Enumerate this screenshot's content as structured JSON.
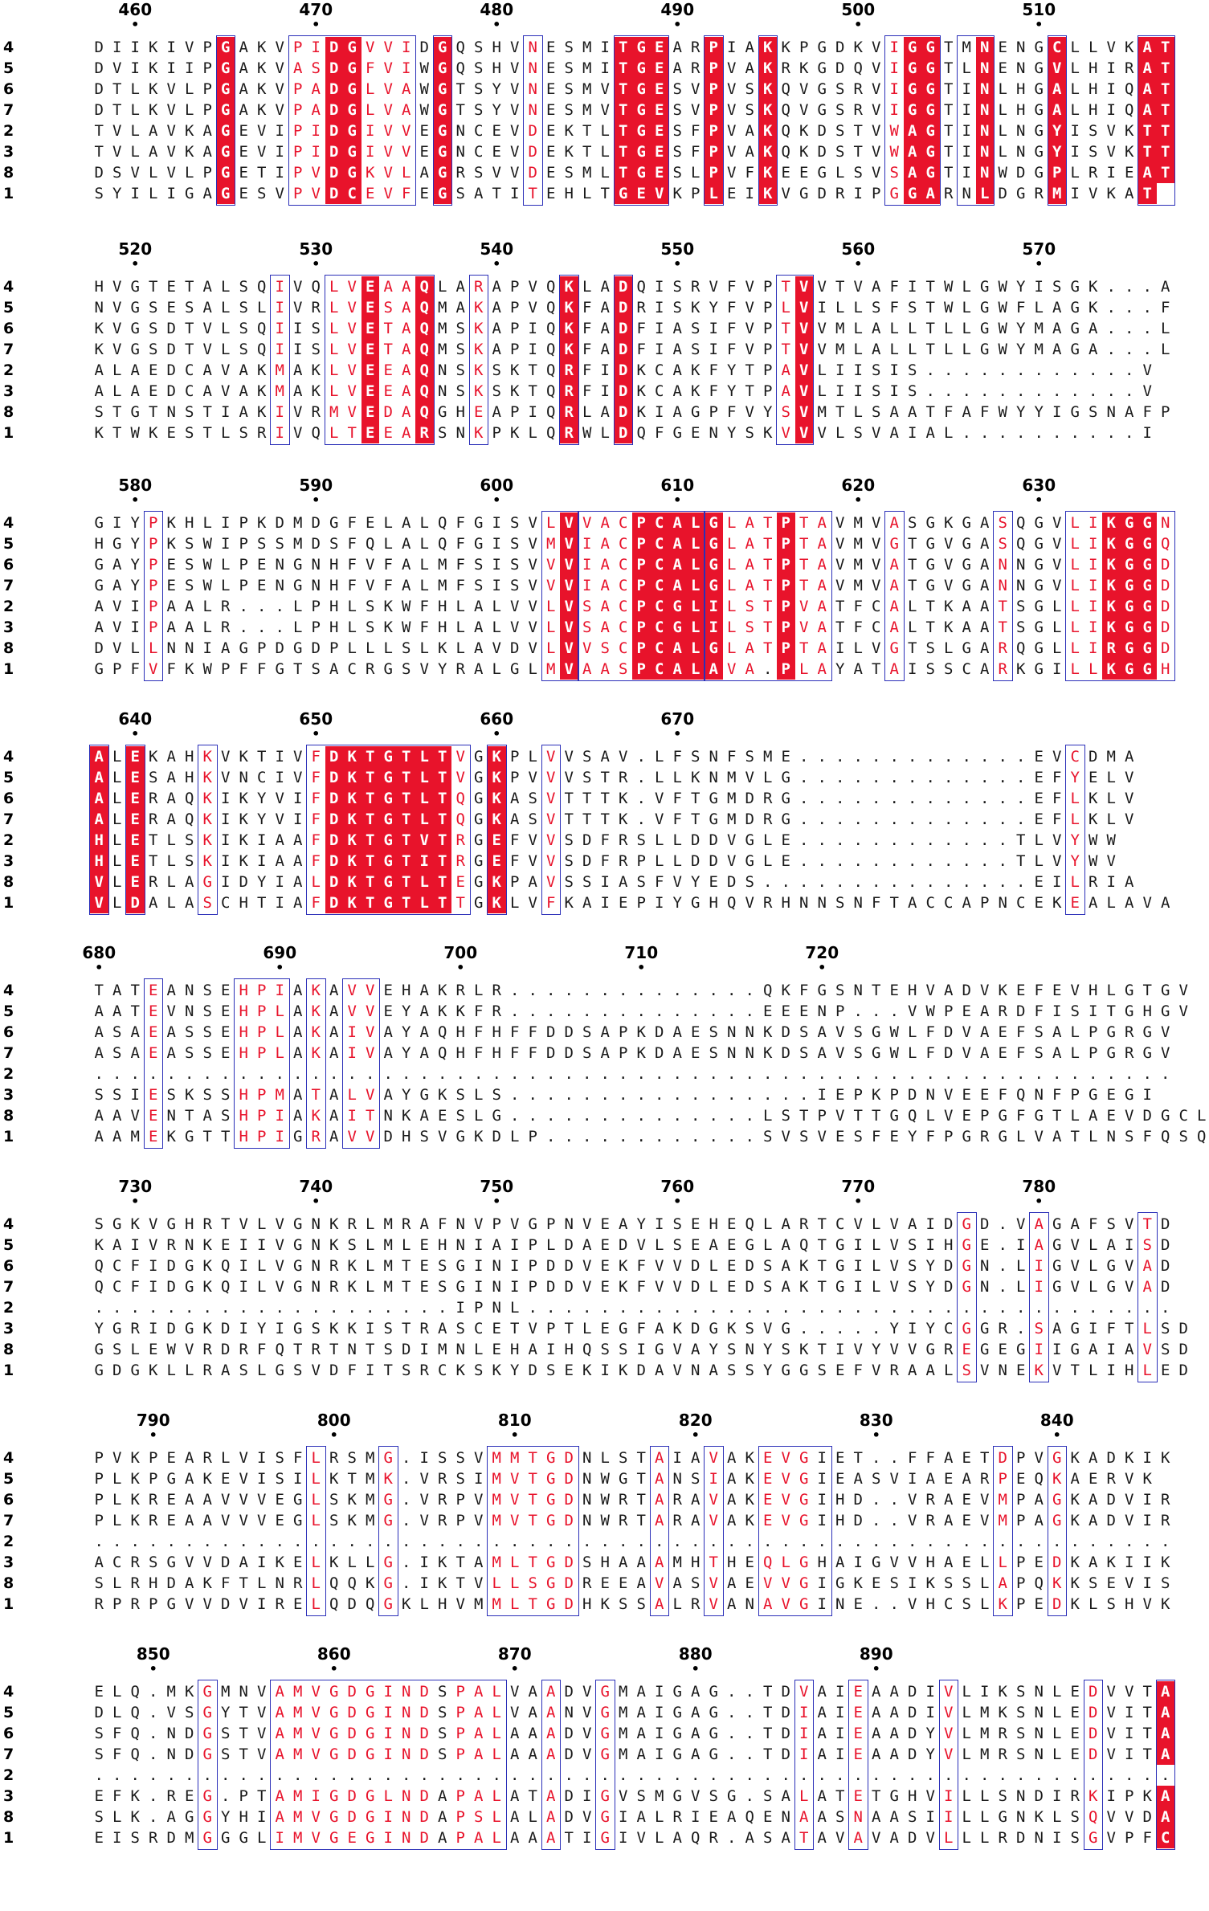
{
  "figure": {
    "type": "multiple-sequence-alignment",
    "rendering_style": "ESPript",
    "colors": {
      "identical_bg": "#e8132b",
      "similar_text": "#e8132b",
      "box": "#2b2fb8",
      "text": "#1a1a1a"
    }
  },
  "blocks": [
    {
      "start": 458,
      "ticks": [
        460,
        470,
        480,
        490,
        500,
        510
      ],
      "sequences": [
        {
          "label": "4",
          "seq": "DIIKIVPGAKVPIDGVVIDGQSHVNESMITGEARPIAKKPGDKVIGGTMNENGCLLVKAT"
        },
        {
          "label": "5",
          "seq": "DVIKIIPGAKVASDGFVIWGQSHVNESMITGEARPVAKRKGDQVIGGTLNENGVLHIRAT"
        },
        {
          "label": "6",
          "seq": "DTLKVLPGAKVPADGLVAWGTSYVNESMVTGESVPVSKQVGSRVIGGTINLHGALHIQAT"
        },
        {
          "label": "7",
          "seq": "DTLKVLPGAKVPADGLVAWGTSYVNESMVTGESVPVSKQVGSRVIGGTINLHGALHIQAT"
        },
        {
          "label": "2",
          "seq": "TVLAVKAGEVIPIDGIVVEGNCEVDEKTLTGESFPVAKQKDSTVWAGTINLNGYISVKTT"
        },
        {
          "label": "3",
          "seq": "TVLAVKAGEVIPIDGIVVEGNCEVDEKTLTGESFPVAKQKDSTVWAGTINLNGYISVKTT"
        },
        {
          "label": "8",
          "seq": "DSVLVLPGETIPVDGKVLAGRSVVDESMLTGESLPVFKEEGLSVSAGTINWDGPLRIEAT"
        },
        {
          "label": "1",
          "seq": "SYILIGAGESVPVDCEVFEGSATITEHLTGEVKPLEIKVGDRIPGGARNLDGRMIVKAT"
        }
      ],
      "identical": [
        [
          7,
          7
        ],
        [
          13,
          14
        ],
        [
          19,
          19
        ],
        [
          29,
          31
        ],
        [
          34,
          34
        ],
        [
          37,
          37
        ],
        [
          45,
          46
        ],
        [
          49,
          49
        ],
        [
          53,
          53
        ],
        [
          58,
          59
        ]
      ],
      "similar": [
        [
          11,
          12
        ],
        [
          15,
          17
        ],
        [
          24,
          24
        ],
        [
          44,
          44
        ]
      ],
      "boxes": [
        [
          7,
          7
        ],
        [
          11,
          17
        ],
        [
          19,
          19
        ],
        [
          24,
          24
        ],
        [
          29,
          31
        ],
        [
          34,
          34
        ],
        [
          37,
          37
        ],
        [
          44,
          46
        ],
        [
          48,
          49
        ],
        [
          53,
          53
        ],
        [
          58,
          59
        ]
      ]
    },
    {
      "start": 518,
      "ticks": [
        520,
        530,
        540,
        550,
        560,
        570
      ],
      "sequences": [
        {
          "label": "4",
          "seq": "HVGTETALSQIVQLVEAAQLARAPVQKLADQISRVFVPTVVTVAFITWLGWYISGK...A"
        },
        {
          "label": "5",
          "seq": "NVGSESALSLIVRLVESAQMAKAPVQKFADRISKYFVPLVILLSFSTWLGWFLAGK...F"
        },
        {
          "label": "6",
          "seq": "KVGSDTVLSQIISLVETAQMSKAPIQKFADFIASIFVPTVVMLALLTLLGWYMAGA...L"
        },
        {
          "label": "7",
          "seq": "KVGSDTVLSQIISLVETAQMSKAPIQKFADFIASIFVPTVVMLALLTLLGWYMAGA...L"
        },
        {
          "label": "2",
          "seq": "ALAEDCAVAKMAKLVEEAQNSKSKTQRFIDKCAKFYTPAVLIISIS............V"
        },
        {
          "label": "3",
          "seq": "ALAEDCAVAKMAKLVEEAQNSKSKTQRFIDKCAKFYTPAVLIISIS............V"
        },
        {
          "label": "8",
          "seq": "STGTNSTIAKIVRMVEDAQGHEAPIQRLADKIAGPFVYSVMTLSAATFAFWYYIGSNAFP"
        },
        {
          "label": "1",
          "seq": "KTWKESTLSRIVQLTEEARSNKPKLQRWLDQFGENYSKVVVLSVAIAL..........I"
        }
      ],
      "identical": [
        [
          15,
          15
        ],
        [
          18,
          18
        ],
        [
          26,
          26
        ],
        [
          29,
          29
        ],
        [
          39,
          39
        ]
      ],
      "similar": [
        [
          10,
          10
        ],
        [
          13,
          14
        ],
        [
          16,
          17
        ],
        [
          21,
          21
        ],
        [
          38,
          38
        ]
      ],
      "boxes": [
        [
          10,
          10
        ],
        [
          13,
          18
        ],
        [
          21,
          21
        ],
        [
          26,
          26
        ],
        [
          29,
          29
        ],
        [
          38,
          39
        ]
      ]
    },
    {
      "start": 578,
      "ticks": [
        580,
        590,
        600,
        610,
        620,
        630
      ],
      "sequences": [
        {
          "label": "4",
          "seq": "GIYPKHLIPKDMDGFELALQFGISVLVVACPCALGLATPTAVMVASGKGASQGVLIKGGN"
        },
        {
          "label": "5",
          "seq": "HGYPKSWIPSSMDSFQLALQFGISVMVIACPCALGLATPTAVMVGTGVGASQGVLIKGGQ"
        },
        {
          "label": "6",
          "seq": "GAYPESWLPENGNHFVFALMFSISVVVIACPCALGLATPTAVMVATGVGANNGVLIKGGD"
        },
        {
          "label": "7",
          "seq": "GAYPESWLPENGNHFVFALMFSISVVVIACPCALGLATPTAVMVATGVGANNGVLIKGGD"
        },
        {
          "label": "2",
          "seq": "AVIPAALR...LPHLSKWFHLALVVLVSACPCGLILSTPVATFCALTKAATSGLLIKGGD"
        },
        {
          "label": "3",
          "seq": "AVIPAALR...LPHLSKWFHLALVVLVSACPCGLILSTPVATFCALTKAATSGLLIKGGD"
        },
        {
          "label": "8",
          "seq": "DVLLNNIAGPDGDPLLLSLKLAVDVLVVSCPCALGLATPTAILVGTSLGARQGLLIRGGD"
        },
        {
          "label": "1",
          "seq": "GPFVFKWPFFGTSACRGSVYRALGLMVAASPCALAVA.PLAYATAISSCARKGILLKGGH"
        }
      ],
      "identical": [
        [
          26,
          26
        ],
        [
          30,
          33
        ],
        [
          34,
          34
        ],
        [
          38,
          38
        ],
        [
          56,
          56
        ],
        [
          57,
          58
        ]
      ],
      "similar": [
        [
          3,
          3
        ],
        [
          25,
          25
        ],
        [
          27,
          29
        ],
        [
          35,
          37
        ],
        [
          39,
          40
        ],
        [
          44,
          44
        ],
        [
          50,
          50
        ],
        [
          54,
          55
        ],
        [
          59,
          59
        ]
      ],
      "boxes": [
        [
          3,
          3
        ],
        [
          25,
          26
        ],
        [
          27,
          33
        ],
        [
          34,
          40
        ],
        [
          44,
          44
        ],
        [
          50,
          50
        ],
        [
          54,
          59
        ]
      ]
    },
    {
      "start": 638,
      "ticks": [
        640,
        650,
        660,
        670
      ],
      "sequences": [
        {
          "label": "4",
          "seq": "ALEKAHKVKTIVFDKTGTLTVGKPLVVSAV.LFSNFSME.............EVCDMA"
        },
        {
          "label": "5",
          "seq": "ALESAHKVNCIVFDKTGTLTVGKPVVVSTR.LLKNMVLG.............EFYELV"
        },
        {
          "label": "6",
          "seq": "ALERAQKIKYVIFDKTGTLTQGKASVTTTK.VFTGMDRG.............EFLKLV"
        },
        {
          "label": "7",
          "seq": "ALERAQKIKYVIFDKTGTLTQGKASVTTTK.VFTGMDRG.............EFLKLV"
        },
        {
          "label": "2",
          "seq": "HLETLSKIKIAAFDKTGTVTRGEFVVSDFRSLLDDVGLE............TLVYWW"
        },
        {
          "label": "3",
          "seq": "HLETLSKIKIAAFDKTGTITRGEFVVSDFRPLLDDVGLE............TLVYWV"
        },
        {
          "label": "8",
          "seq": "VLERLAGIDYIALDKTGTLTEGKPAVSSIASFVYEDS...............EILRIA"
        },
        {
          "label": "1",
          "seq": "VLDALASCHTIAFDKTGTLTTGKLVFKAIEPIYGHQVRHNNSNFTACCAPNCEKEALAVA"
        }
      ],
      "identical": [
        [
          0,
          0
        ],
        [
          2,
          2
        ],
        [
          13,
          19
        ],
        [
          22,
          22
        ]
      ],
      "similar": [
        [
          6,
          6
        ],
        [
          12,
          12
        ],
        [
          20,
          20
        ],
        [
          25,
          25
        ],
        [
          54,
          54
        ]
      ],
      "boxes": [
        [
          0,
          0
        ],
        [
          2,
          2
        ],
        [
          6,
          6
        ],
        [
          12,
          20
        ],
        [
          22,
          22
        ],
        [
          25,
          25
        ],
        [
          54,
          54
        ]
      ]
    },
    {
      "start": 680,
      "ticks": [
        680,
        690,
        700,
        710,
        720
      ],
      "sequences": [
        {
          "label": "4",
          "seq": "TATEANSEHPIAKAVVEHAKRLR..............QKFGSNTEHVADVKEFEVHLGTGV"
        },
        {
          "label": "5",
          "seq": "AATEVNSEHPLAKAVVEYAKKFR..............EEENP...VWPEARDFISITGHGV"
        },
        {
          "label": "6",
          "seq": "ASAEASSEHPLAKAIVAYAQHFHFFDDSAPKDAESNNKDSAVSGWLFDVAEFSALPGRGV"
        },
        {
          "label": "7",
          "seq": "ASAEASSEHPLAKAIVAYAQHFHFFDDSAPKDAESNNKDSAVSGWLFDVAEFSALPGRGV"
        },
        {
          "label": "2",
          "seq": "............................................................"
        },
        {
          "label": "3",
          "seq": "SSIESKSSHPMATALVAYGKSLS.................IEPKPDNVEEFQNFPGEGI"
        },
        {
          "label": "8",
          "seq": "AAVENTASHPIAKAITNKAESLG..............LSTPVTTGQLVEPGFGTLAEVDGCLVAV"
        },
        {
          "label": "1",
          "seq": "AAMEKGTTHPIGRAVVDHSVGKDLP............SVSVESFEYFPGRGLVATLNSFQSQSET"
        }
      ],
      "identical": [],
      "similar": [
        [
          3,
          3
        ],
        [
          8,
          10
        ],
        [
          12,
          12
        ],
        [
          14,
          15
        ]
      ],
      "boxes": [
        [
          3,
          3
        ],
        [
          8,
          10
        ],
        [
          12,
          12
        ],
        [
          14,
          15
        ]
      ]
    },
    {
      "start": 728,
      "ticks": [
        730,
        740,
        750,
        760,
        770,
        780
      ],
      "sequences": [
        {
          "label": "4",
          "seq": "SGKVGHRTVLVGNKRLMRAFNVPVGPNVEAYISEHEQLARTCVLVAIDGD.VAGAFSVTD"
        },
        {
          "label": "5",
          "seq": "KAIVRNKEIIVGNKSLMLEHNIAIPLDAEDVLSEAEGLAQTGILVSIHGE.IAGVLAISD"
        },
        {
          "label": "6",
          "seq": "QCFIDGKQILVGNRKLMTESGINIPDDVEKFVVDLEDSAKTGILVSYDGN.LIGVLGVAD"
        },
        {
          "label": "7",
          "seq": "QCFIDGKQILVGNRKLMTESGINIPDDVEKFVVDLEDSAKTGILVSYDGN.LIGVLGVAD"
        },
        {
          "label": "2",
          "seq": "....................IPNL...................................."
        },
        {
          "label": "3",
          "seq": "YGRIDGKDIYIGSKKISTRASCETVPTLEGFAKDGKSVG.....YIYCGGR.SAGIFTLSD"
        },
        {
          "label": "8",
          "seq": "GSLEWVRDRFQTRTNTSDIMNLEHAIHQSSIGVAYSNYSKTIVYVVGREGEGIIGAIAVSD"
        },
        {
          "label": "1",
          "seq": "GDGKLLRASLGSVDFITSRCKSKYDSEKIKDAVNASSYGGSEFVRAALSVNEKVTLIHLED"
        }
      ],
      "identical": [],
      "similar": [
        [
          48,
          48
        ],
        [
          52,
          52
        ],
        [
          58,
          58
        ]
      ],
      "boxes": [
        [
          48,
          48
        ],
        [
          52,
          52
        ],
        [
          58,
          58
        ]
      ]
    },
    {
      "start": 787,
      "ticks": [
        790,
        800,
        810,
        820,
        830,
        840
      ],
      "sequences": [
        {
          "label": "4",
          "seq": "PVKPEARLVISFLRSMG.ISSVMMTGDNLSTAIAVAKEVGIET..FFAETDPVGKADKIK"
        },
        {
          "label": "5",
          "seq": "PLKPGAKEVISILKTMK.VRSIMVTGDNWGTANSIAKEVGIEASVIAEARPEQKAERVK"
        },
        {
          "label": "6",
          "seq": "PLKREAAVVVEGLSKMG.VRPVMVTGDNWRTARAVAKEVGIHD..VRAEVMPAGKADVIR"
        },
        {
          "label": "7",
          "seq": "PLKREAAVVVEGLSKMG.VRPVMVTGDNWRTARAVAKEVGIHD..VRAEVMPAGKADVIR"
        },
        {
          "label": "2",
          "seq": "............................................................"
        },
        {
          "label": "3",
          "seq": "ACRSGVVDAIKELKLLG.IKTAMLTGDSHAAAMHTHEQLGHAIGVVHAELLPEDKAKIIK"
        },
        {
          "label": "8",
          "seq": "SLRHDAKFTLNRLQQKG.IKTVLLSGDREEAVASVAEVVGIGKESIKSSLAPQKKSEVIS"
        },
        {
          "label": "1",
          "seq": "RPRPGVVDVIRELQDQGKLHVMMLTGDHKSSALRVANAVGINE..VHCSLKPEDKLSHVK"
        }
      ],
      "identical": [],
      "similar": [
        [
          12,
          12
        ],
        [
          16,
          16
        ],
        [
          22,
          26
        ],
        [
          31,
          31
        ],
        [
          34,
          34
        ],
        [
          37,
          39
        ],
        [
          50,
          50
        ],
        [
          53,
          53
        ]
      ],
      "boxes": [
        [
          12,
          12
        ],
        [
          16,
          16
        ],
        [
          22,
          26
        ],
        [
          31,
          31
        ],
        [
          34,
          34
        ],
        [
          37,
          40
        ],
        [
          50,
          50
        ],
        [
          53,
          53
        ]
      ]
    },
    {
      "start": 847,
      "ticks": [
        850,
        860,
        870,
        880,
        890
      ],
      "sequences": [
        {
          "label": "4",
          "seq": "ELQ.MKGMNVAMVGDGINDSPALVAADVGMAIGAG..TDVAIEAADIVLIKSNLEDVVTA"
        },
        {
          "label": "5",
          "seq": "DLQ.VSGYTVAMVGDGINDSPALVAANVGMAIGAG..TDIAIEAADIVLMKSNLEDVITA"
        },
        {
          "label": "6",
          "seq": "SFQ.NDGSTVAMVGDGINDSPALAAADVGMAIGAG..TDIAIEAADYVLMRSNLEDVITA"
        },
        {
          "label": "7",
          "seq": "SFQ.NDGSTVAMVGDGINDSPALAAADVGMAIGAG..TDIAIEAADYVLMRSNLEDVITA"
        },
        {
          "label": "2",
          "seq": "............................................................"
        },
        {
          "label": "3",
          "seq": "EFK.REG.PTAMIGDGLNDAPALATADIGVSMGVSG.SALATETGHVILLSNDIRKIPKA"
        },
        {
          "label": "8",
          "seq": "SLK.AGGYHIAMVGDGINDAPSLALADVGIALRIEAQENAASNAASIILLGNKLSQVVDA"
        },
        {
          "label": "1",
          "seq": "EISRDMGGGLIMVGEGINDAPALAAATIGIVLAQR.ASATAVAVADVLLLRDNISGVPFC"
        }
      ],
      "identical": [
        [
          59,
          59
        ]
      ],
      "similar": [
        [
          6,
          6
        ],
        [
          10,
          18
        ],
        [
          20,
          22
        ],
        [
          25,
          25
        ],
        [
          28,
          28
        ],
        [
          39,
          39
        ],
        [
          42,
          42
        ],
        [
          47,
          47
        ],
        [
          55,
          55
        ]
      ],
      "boxes": [
        [
          6,
          6
        ],
        [
          10,
          22
        ],
        [
          25,
          25
        ],
        [
          28,
          28
        ],
        [
          39,
          39
        ],
        [
          42,
          42
        ],
        [
          47,
          47
        ],
        [
          55,
          55
        ],
        [
          59,
          59
        ]
      ]
    }
  ]
}
